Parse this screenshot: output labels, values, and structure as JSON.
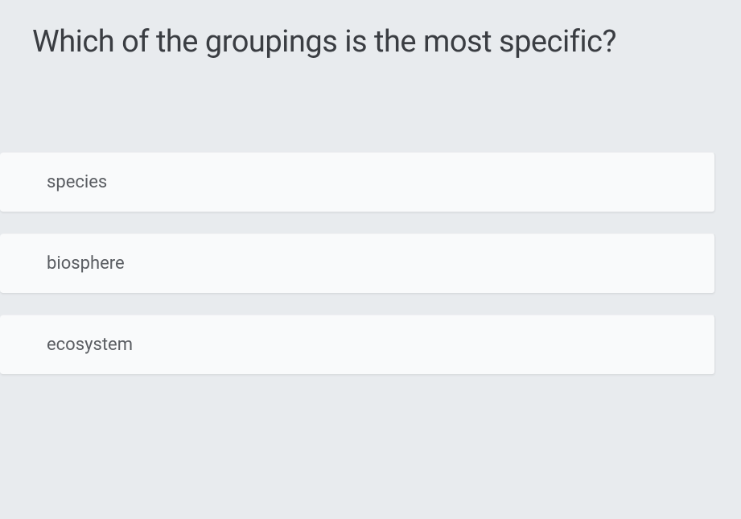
{
  "question": {
    "title": "Which of the groupings is the most specific?"
  },
  "options": [
    {
      "label": "species"
    },
    {
      "label": "biosphere"
    },
    {
      "label": "ecosystem"
    }
  ],
  "styling": {
    "background_color": "#e8ebee",
    "option_background": "#f9fafb",
    "title_color": "#3a3d42",
    "option_text_color": "#5a5d62",
    "title_fontsize": 38,
    "option_fontsize": 22,
    "option_gap": 26,
    "option_border_radius": 4
  }
}
